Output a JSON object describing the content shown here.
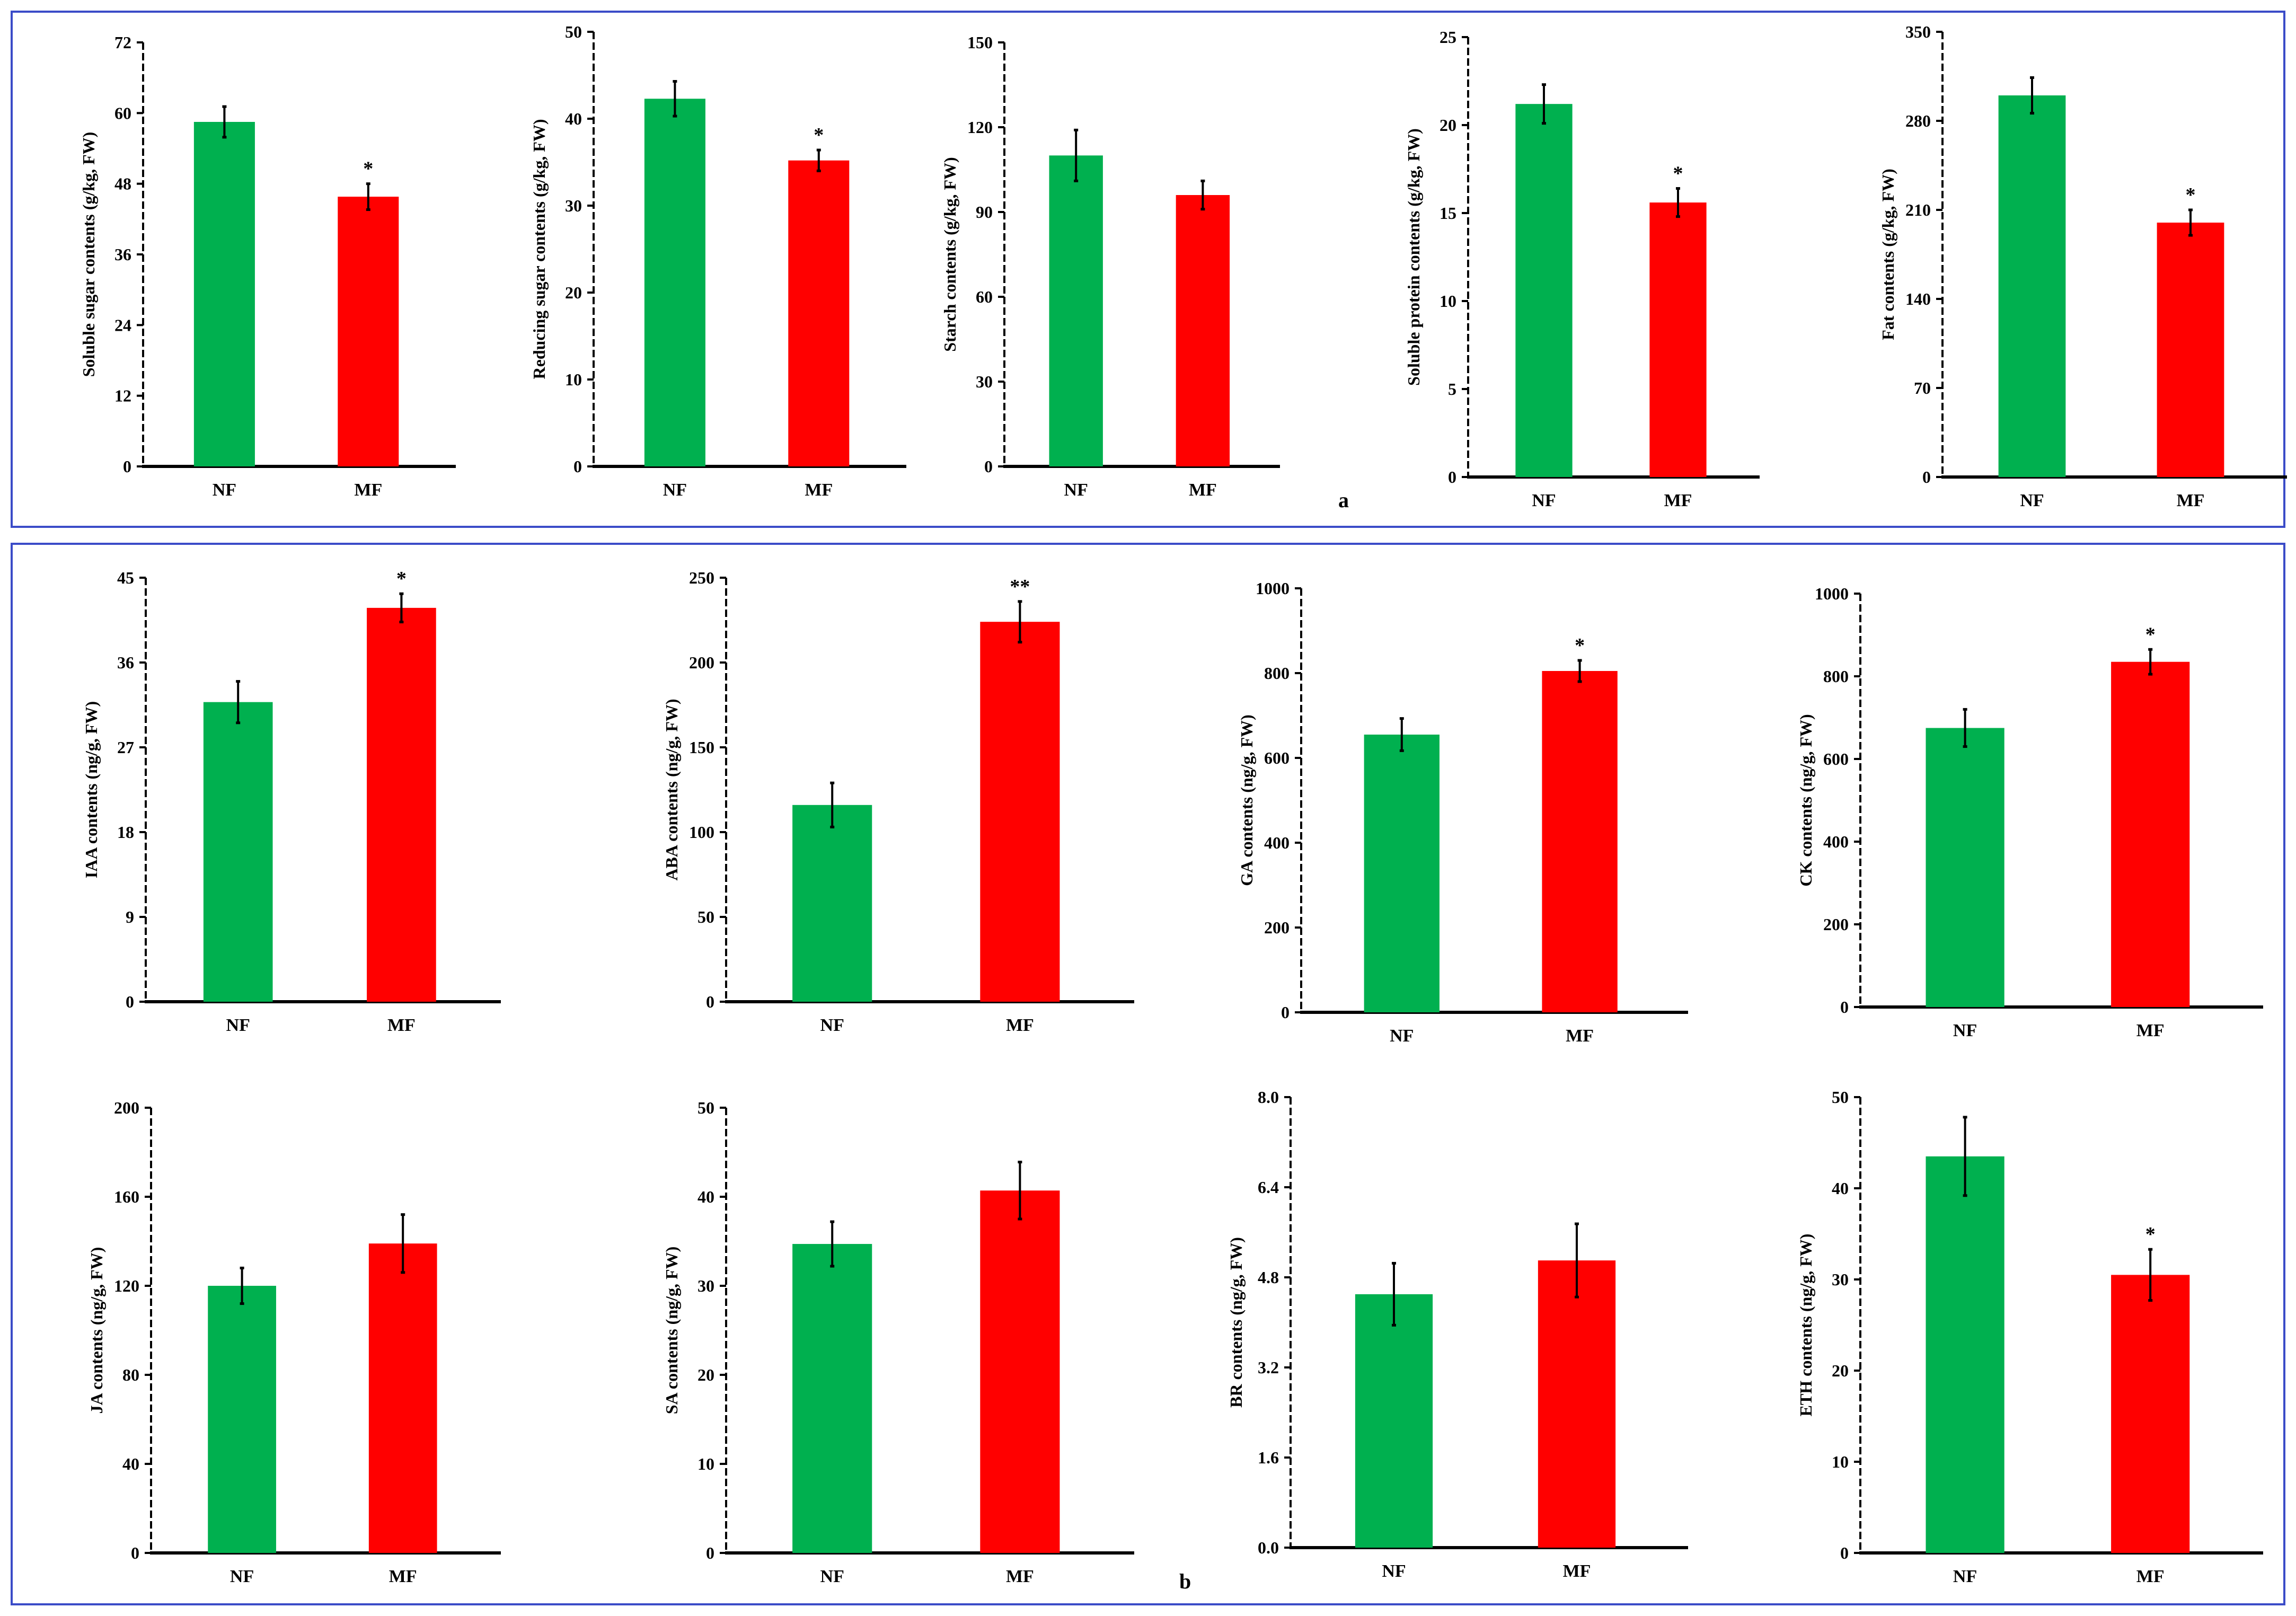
{
  "panel_labels": {
    "a": "a",
    "b": "b"
  },
  "colors": {
    "NF": "#00b04f",
    "MF": "#ff0000"
  },
  "chart_data": [
    {
      "type": "bar",
      "panel": "a",
      "ylabel": "Soluble sugar contents (g/kg, FW)",
      "categories": [
        "NF",
        "MF"
      ],
      "values": [
        58.5,
        45.8
      ],
      "errors": [
        2.6,
        2.2
      ],
      "significance": [
        "",
        "*"
      ],
      "ylim": [
        0,
        72
      ],
      "yticks": [
        "0",
        "12",
        "24",
        "36",
        "48",
        "60",
        "72"
      ]
    },
    {
      "type": "bar",
      "panel": "a",
      "ylabel": "Reducing sugar contents (g/kg, FW)",
      "categories": [
        "NF",
        "MF"
      ],
      "values": [
        42.3,
        35.2
      ],
      "errors": [
        2.0,
        1.2
      ],
      "significance": [
        "",
        "*"
      ],
      "ylim": [
        0,
        50
      ],
      "yticks": [
        "0",
        "10",
        "20",
        "30",
        "40",
        "50"
      ]
    },
    {
      "type": "bar",
      "panel": "a",
      "ylabel": "Starch contents (g/kg, FW)",
      "categories": [
        "NF",
        "MF"
      ],
      "values": [
        110,
        96
      ],
      "errors": [
        9,
        5
      ],
      "significance": [
        "",
        ""
      ],
      "ylim": [
        0,
        150
      ],
      "yticks": [
        "0",
        "30",
        "60",
        "90",
        "120",
        "150"
      ]
    },
    {
      "type": "bar",
      "panel": "a",
      "ylabel": "Soluble protein contents (g/kg, FW)",
      "categories": [
        "NF",
        "MF"
      ],
      "values": [
        21.2,
        15.6
      ],
      "errors": [
        1.1,
        0.8
      ],
      "significance": [
        "",
        "*"
      ],
      "ylim": [
        0,
        25
      ],
      "yticks": [
        "0",
        "5",
        "10",
        "15",
        "20",
        "25"
      ]
    },
    {
      "type": "bar",
      "panel": "a",
      "ylabel": "Fat contents (g/kg, FW)",
      "categories": [
        "NF",
        "MF"
      ],
      "values": [
        300,
        200
      ],
      "errors": [
        14,
        10
      ],
      "significance": [
        "",
        "*"
      ],
      "ylim": [
        0,
        350
      ],
      "yticks": [
        "0",
        "70",
        "140",
        "210",
        "280",
        "350"
      ]
    },
    {
      "type": "bar",
      "panel": "b",
      "ylabel": "IAA contents (ng/g, FW)",
      "categories": [
        "NF",
        "MF"
      ],
      "values": [
        31.8,
        41.8
      ],
      "errors": [
        2.2,
        1.5
      ],
      "significance": [
        "",
        "*"
      ],
      "ylim": [
        0,
        45
      ],
      "yticks": [
        "0",
        "9",
        "18",
        "27",
        "36",
        "45"
      ]
    },
    {
      "type": "bar",
      "panel": "b",
      "ylabel": "ABA contents (ng/g, FW)",
      "categories": [
        "NF",
        "MF"
      ],
      "values": [
        116,
        224
      ],
      "errors": [
        13,
        12
      ],
      "significance": [
        "",
        "**"
      ],
      "ylim": [
        0,
        250
      ],
      "yticks": [
        "0",
        "50",
        "100",
        "150",
        "200",
        "250"
      ]
    },
    {
      "type": "bar",
      "panel": "b",
      "ylabel": "GA contents (ng/g, FW)",
      "categories": [
        "NF",
        "MF"
      ],
      "values": [
        655,
        805
      ],
      "errors": [
        38,
        25
      ],
      "significance": [
        "",
        "*"
      ],
      "ylim": [
        0,
        1000
      ],
      "yticks": [
        "0",
        "200",
        "400",
        "600",
        "800",
        "1000"
      ]
    },
    {
      "type": "bar",
      "panel": "b",
      "ylabel": "CK  contents (ng/g, FW)",
      "categories": [
        "NF",
        "MF"
      ],
      "values": [
        675,
        835
      ],
      "errors": [
        45,
        30
      ],
      "significance": [
        "",
        "*"
      ],
      "ylim": [
        0,
        1000
      ],
      "yticks": [
        "0",
        "200",
        "400",
        "600",
        "800",
        "1000"
      ]
    },
    {
      "type": "bar",
      "panel": "b",
      "ylabel": "JA contents (ng/g, FW)",
      "categories": [
        "NF",
        "MF"
      ],
      "values": [
        120,
        139
      ],
      "errors": [
        8,
        13
      ],
      "significance": [
        "",
        ""
      ],
      "ylim": [
        0,
        200
      ],
      "yticks": [
        "0",
        "40",
        "80",
        "120",
        "160",
        "200"
      ]
    },
    {
      "type": "bar",
      "panel": "b",
      "ylabel": "SA contents (ng/g, FW)",
      "categories": [
        "NF",
        "MF"
      ],
      "values": [
        34.7,
        40.7
      ],
      "errors": [
        2.5,
        3.2
      ],
      "significance": [
        "",
        ""
      ],
      "ylim": [
        0,
        50
      ],
      "yticks": [
        "0",
        "10",
        "20",
        "30",
        "40",
        "50"
      ]
    },
    {
      "type": "bar",
      "panel": "b",
      "ylabel": "BR contents (ng/g, FW)",
      "categories": [
        "NF",
        "MF"
      ],
      "values": [
        4.5,
        5.1
      ],
      "errors": [
        0.55,
        0.65
      ],
      "significance": [
        "",
        ""
      ],
      "ylim": [
        0,
        8
      ],
      "yticks": [
        "0.0",
        "1.6",
        "3.2",
        "4.8",
        "6.4",
        "8.0"
      ]
    },
    {
      "type": "bar",
      "panel": "b",
      "ylabel": "ETH contents (ng/g, FW)",
      "categories": [
        "NF",
        "MF"
      ],
      "values": [
        43.5,
        30.5
      ],
      "errors": [
        4.3,
        2.8
      ],
      "significance": [
        "",
        "*"
      ],
      "ylim": [
        0,
        50
      ],
      "yticks": [
        "0",
        "10",
        "20",
        "30",
        "40",
        "50"
      ]
    }
  ]
}
